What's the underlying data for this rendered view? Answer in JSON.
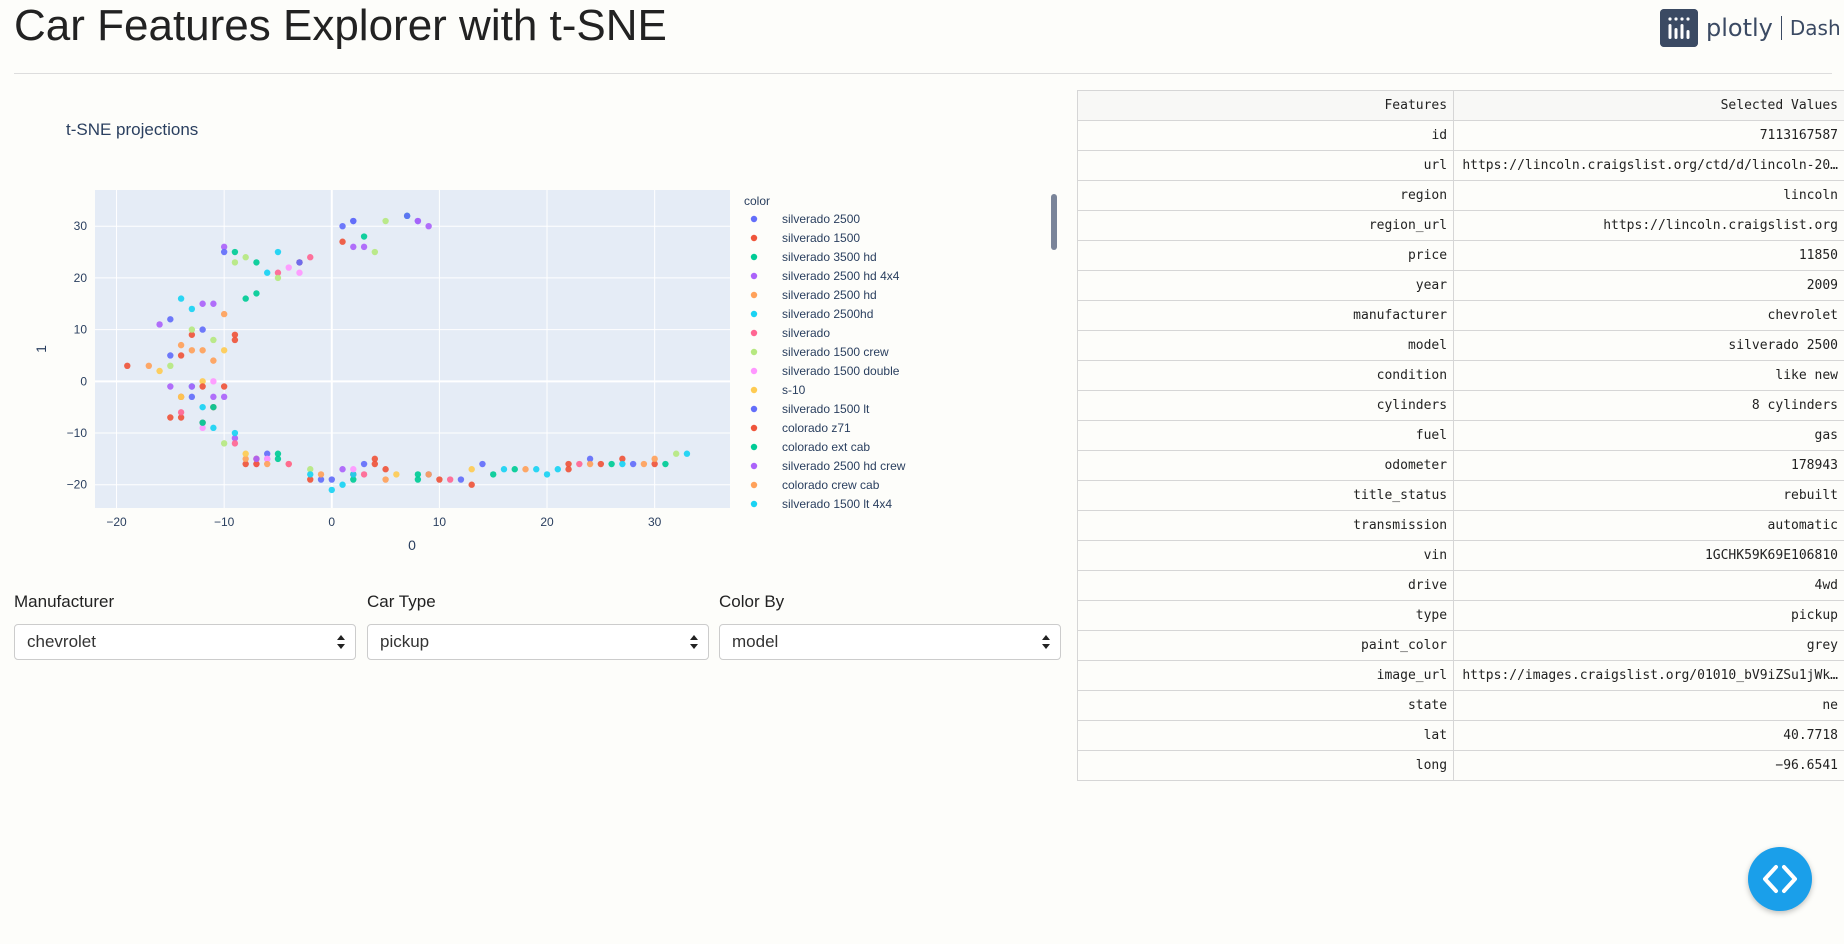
{
  "header": {
    "title": "Car Features Explorer with t-SNE",
    "logo_text": "plotly",
    "logo_dash": "Dash"
  },
  "chart_data": {
    "type": "scatter",
    "title": "t-SNE projections",
    "xlabel": "0",
    "ylabel": "1",
    "xlim": [
      -22,
      37
    ],
    "ylim": [
      -24.5,
      37
    ],
    "xticks": [
      -20,
      -10,
      0,
      10,
      20,
      30
    ],
    "yticks": [
      -20,
      -10,
      0,
      10,
      20,
      30
    ],
    "grid": true,
    "legend_title": "color",
    "legend_placement": "right",
    "series": [
      {
        "name": "silverado 2500",
        "color": "#636efa",
        "points": [
          [
            1,
            30
          ],
          [
            2,
            31
          ],
          [
            8,
            31
          ],
          [
            -12,
            10
          ],
          [
            -6,
            -14
          ],
          [
            3,
            -16
          ],
          [
            9,
            -18
          ],
          [
            14,
            -16
          ],
          [
            24,
            -15
          ],
          [
            28,
            -16
          ],
          [
            -15,
            5
          ],
          [
            0,
            -19
          ]
        ]
      },
      {
        "name": "silverado 1500",
        "color": "#ef553b",
        "points": [
          [
            -19,
            3
          ],
          [
            -14,
            -7
          ],
          [
            -11,
            -5
          ],
          [
            -8,
            -16
          ],
          [
            -2,
            -19
          ],
          [
            2,
            -18
          ],
          [
            5,
            -17
          ],
          [
            10,
            -19
          ],
          [
            13,
            -20
          ],
          [
            22,
            -17
          ],
          [
            25,
            -16
          ],
          [
            27,
            -15
          ],
          [
            30,
            -16
          ],
          [
            -13,
            9
          ],
          [
            -9,
            8
          ],
          [
            -10,
            -1
          ],
          [
            -14,
            -3
          ],
          [
            -3,
            23
          ],
          [
            1,
            27
          ],
          [
            4,
            -16
          ],
          [
            -7,
            -15
          ]
        ]
      },
      {
        "name": "silverado 3500 hd",
        "color": "#00cc96",
        "points": [
          [
            -9,
            25
          ],
          [
            -7,
            17
          ],
          [
            8,
            -19
          ],
          [
            15,
            -18
          ],
          [
            26,
            -16
          ],
          [
            31,
            -16
          ],
          [
            -5,
            -14
          ],
          [
            2,
            -19
          ],
          [
            -11,
            -5
          ],
          [
            7,
            32
          ]
        ]
      },
      {
        "name": "silverado 2500 hd 4x4",
        "color": "#ab63fa",
        "points": [
          [
            -16,
            11
          ],
          [
            -10,
            26
          ],
          [
            3,
            26
          ],
          [
            8,
            31
          ],
          [
            -12,
            15
          ],
          [
            -11,
            -3
          ],
          [
            1,
            -17
          ],
          [
            -9,
            -11
          ],
          [
            -6,
            -15
          ],
          [
            -15,
            -1
          ]
        ]
      },
      {
        "name": "silverado 2500 hd",
        "color": "#ffa15a",
        "points": [
          [
            -17,
            3
          ],
          [
            -14,
            7
          ],
          [
            -12,
            6
          ],
          [
            -10,
            13
          ],
          [
            -8,
            -15
          ],
          [
            9,
            -18
          ],
          [
            18,
            -17
          ],
          [
            29,
            -16
          ],
          [
            -4,
            -16
          ],
          [
            5,
            -19
          ]
        ]
      },
      {
        "name": "silverado 2500hd",
        "color": "#19d3f3",
        "points": [
          [
            -13,
            14
          ],
          [
            -6,
            21
          ],
          [
            0,
            -21
          ],
          [
            19,
            -17
          ],
          [
            21,
            -17
          ],
          [
            -11,
            -9
          ],
          [
            -9,
            -10
          ],
          [
            -13,
            -1
          ],
          [
            2,
            -18
          ],
          [
            16,
            -17
          ],
          [
            33,
            -14
          ]
        ]
      },
      {
        "name": "silverado",
        "color": "#ff6692",
        "points": [
          [
            -14,
            -6
          ],
          [
            -12,
            -8
          ],
          [
            -9,
            -12
          ],
          [
            -4,
            -16
          ],
          [
            3,
            -18
          ],
          [
            11,
            -19
          ],
          [
            23,
            -16
          ],
          [
            -2,
            24
          ],
          [
            -5,
            21
          ]
        ]
      },
      {
        "name": "silverado 1500 crew",
        "color": "#b6e880",
        "points": [
          [
            -15,
            3
          ],
          [
            -13,
            10
          ],
          [
            -11,
            8
          ],
          [
            -9,
            23
          ],
          [
            -8,
            24
          ],
          [
            -5,
            20
          ],
          [
            4,
            25
          ],
          [
            5,
            31
          ],
          [
            -10,
            -12
          ],
          [
            -2,
            -17
          ],
          [
            32,
            -14
          ]
        ]
      },
      {
        "name": "silverado 1500 double",
        "color": "#ff97ff",
        "points": [
          [
            -7,
            -16
          ],
          [
            -4,
            22
          ],
          [
            -3,
            21
          ],
          [
            -6,
            -15
          ],
          [
            -12,
            -9
          ],
          [
            2,
            -17
          ],
          [
            -11,
            0
          ]
        ]
      },
      {
        "name": "s-10",
        "color": "#fecb52",
        "points": [
          [
            -12,
            0
          ],
          [
            -10,
            6
          ],
          [
            -8,
            -14
          ],
          [
            6,
            -18
          ],
          [
            13,
            -17
          ],
          [
            -16,
            2
          ],
          [
            -14,
            -3
          ]
        ]
      },
      {
        "name": "silverado 1500 lt",
        "color": "#636efa",
        "points": [
          [
            -15,
            12
          ],
          [
            -10,
            25
          ],
          [
            2,
            31
          ],
          [
            7,
            32
          ],
          [
            -13,
            -3
          ],
          [
            -3,
            23
          ],
          [
            -1,
            -19
          ],
          [
            12,
            -19
          ]
        ]
      },
      {
        "name": "colorado z71",
        "color": "#ef553b",
        "points": [
          [
            -9,
            9
          ],
          [
            -14,
            5
          ],
          [
            4,
            -15
          ],
          [
            22,
            -16
          ],
          [
            -12,
            -1
          ],
          [
            -15,
            -7
          ],
          [
            -7,
            -16
          ]
        ]
      },
      {
        "name": "colorado ext cab",
        "color": "#00cc96",
        "points": [
          [
            -8,
            16
          ],
          [
            -7,
            23
          ],
          [
            3,
            28
          ],
          [
            17,
            -17
          ],
          [
            -5,
            -15
          ],
          [
            8,
            -18
          ],
          [
            -12,
            -8
          ]
        ]
      },
      {
        "name": "silverado 2500 hd crew",
        "color": "#ab63fa",
        "points": [
          [
            -11,
            15
          ],
          [
            -13,
            -1
          ],
          [
            -10,
            -3
          ],
          [
            2,
            26
          ],
          [
            9,
            30
          ],
          [
            -7,
            -15
          ]
        ]
      },
      {
        "name": "colorado crew cab",
        "color": "#ffa15a",
        "points": [
          [
            -13,
            6
          ],
          [
            -11,
            4
          ],
          [
            -6,
            -16
          ],
          [
            24,
            -16
          ],
          [
            30,
            -15
          ],
          [
            -1,
            -18
          ]
        ]
      },
      {
        "name": "silverado 1500 lt 4x4",
        "color": "#19d3f3",
        "points": [
          [
            -14,
            16
          ],
          [
            -12,
            -5
          ],
          [
            -5,
            25
          ],
          [
            20,
            -18
          ],
          [
            27,
            -16
          ],
          [
            -2,
            -18
          ],
          [
            1,
            -20
          ]
        ]
      }
    ]
  },
  "controls": [
    {
      "label": "Manufacturer",
      "value": "chevrolet"
    },
    {
      "label": "Car Type",
      "value": "pickup"
    },
    {
      "label": "Color By",
      "value": "model"
    }
  ],
  "table": {
    "headers": [
      "Features",
      "Selected Values"
    ],
    "rows": [
      [
        "id",
        "7113167587"
      ],
      [
        "url",
        "https://lincoln.craigslist.org/ctd/d/lincoln-20…"
      ],
      [
        "region",
        "lincoln"
      ],
      [
        "region_url",
        "https://lincoln.craigslist.org"
      ],
      [
        "price",
        "11850"
      ],
      [
        "year",
        "2009"
      ],
      [
        "manufacturer",
        "chevrolet"
      ],
      [
        "model",
        "silverado 2500"
      ],
      [
        "condition",
        "like new"
      ],
      [
        "cylinders",
        "8 cylinders"
      ],
      [
        "fuel",
        "gas"
      ],
      [
        "odometer",
        "178943"
      ],
      [
        "title_status",
        "rebuilt"
      ],
      [
        "transmission",
        "automatic"
      ],
      [
        "vin",
        "1GCHK59K69E106810"
      ],
      [
        "drive",
        "4wd"
      ],
      [
        "type",
        "pickup"
      ],
      [
        "paint_color",
        "grey"
      ],
      [
        "image_url",
        "https://images.craigslist.org/01010_bV9iZSu1jWk…"
      ],
      [
        "state",
        "ne"
      ],
      [
        "lat",
        "40.7718"
      ],
      [
        "long",
        "-96.6541"
      ]
    ]
  },
  "icons": {
    "logo": "plotly-logo-icon",
    "fab": "code-icon",
    "select_arrows": "up-down-arrows-icon"
  }
}
